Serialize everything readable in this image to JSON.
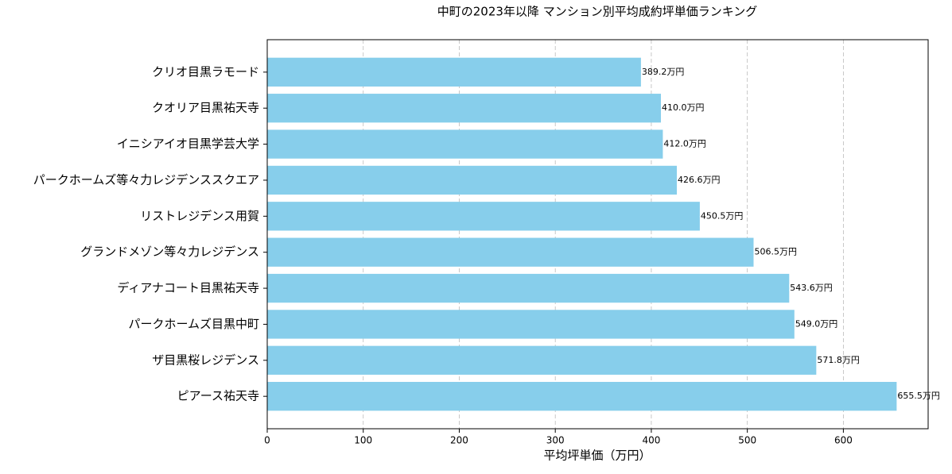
{
  "chart_data": {
    "type": "barh",
    "title": "中町の2023年以降 マンション別平均成約坪単価ランキング",
    "x_label": "平均坪単価（万円）",
    "categories": [
      "クリオ目黒ラモード",
      "クオリア目黒祐天寺",
      "イニシアイオ目黒学芸大学",
      "パークホームズ等々力レジデンススクエア",
      "リストレジデンス用賀",
      "グランドメゾン等々力レジデンス",
      "ディアナコート目黒祐天寺",
      "パークホームズ目黒中町",
      "ザ目黒桜レジデンス",
      "ピアース祐天寺"
    ],
    "values": [
      389.2,
      410.0,
      412.0,
      426.6,
      450.5,
      506.5,
      543.6,
      549.0,
      571.8,
      655.5
    ],
    "value_labels": [
      "389.2万円",
      "410.0万円",
      "412.0万円",
      "426.6万円",
      "450.5万円",
      "506.5万円",
      "543.6万円",
      "549.0万円",
      "571.8万円",
      "655.5万円"
    ],
    "color": "#87ceeb",
    "xlim": [
      0,
      688.3
    ],
    "xticks": [
      0,
      100,
      200,
      300,
      400,
      500,
      600
    ],
    "grid": true
  }
}
